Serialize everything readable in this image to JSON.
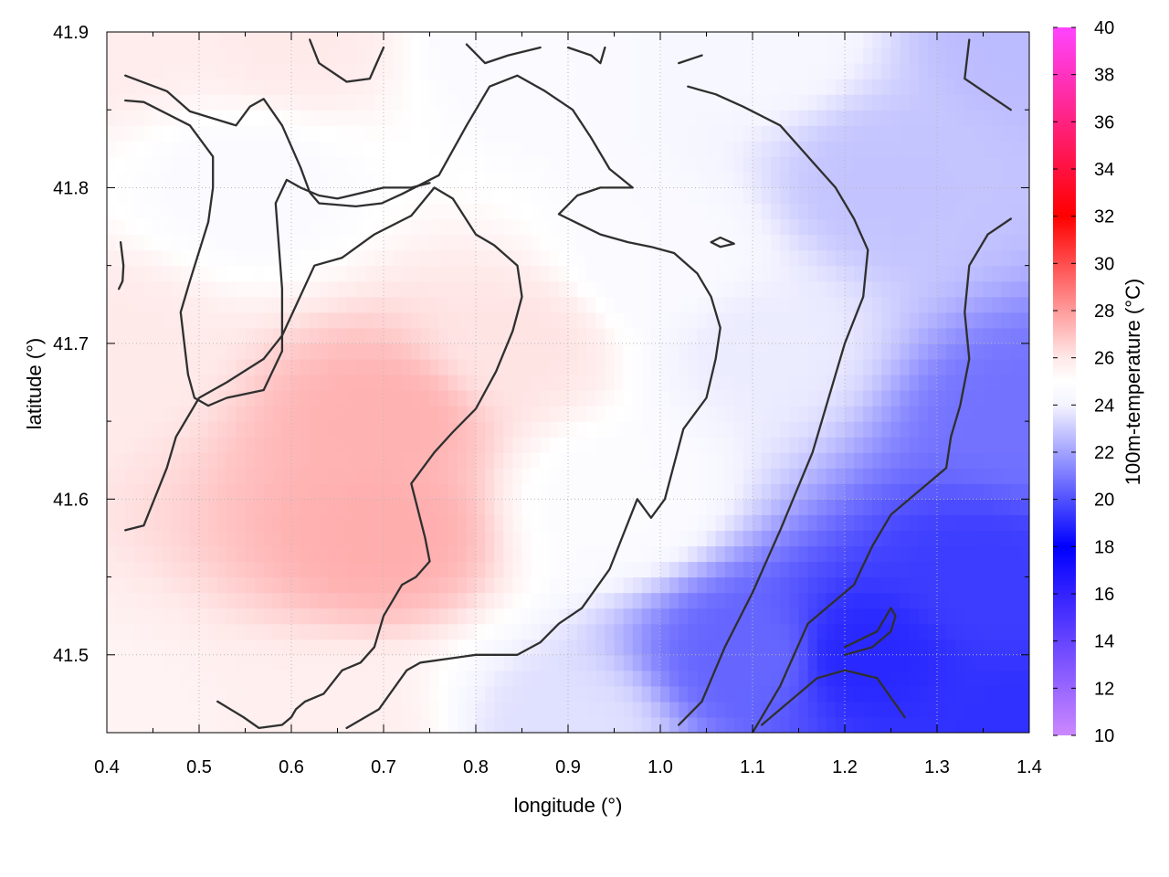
{
  "chart_data": {
    "type": "heatmap",
    "xlabel": "longitude (°)",
    "ylabel": "latitude (°)",
    "colorbar_label": "100m-temperature (°C)",
    "xlim": [
      0.4,
      1.4
    ],
    "ylim": [
      41.45,
      41.9
    ],
    "x_ticks": [
      0.4,
      0.5,
      0.6,
      0.7,
      0.8,
      0.9,
      1.0,
      1.1,
      1.2,
      1.3,
      1.4
    ],
    "x_tick_labels": [
      "0.4",
      "0.5",
      "0.6",
      "0.7",
      "0.8",
      "0.9",
      "1.0",
      "1.1",
      "1.2",
      "1.3",
      "1.4"
    ],
    "y_ticks": [
      41.5,
      41.6,
      41.7,
      41.8,
      41.9
    ],
    "y_tick_labels": [
      "41.5",
      "41.6",
      "41.7",
      "41.8",
      "41.9"
    ],
    "colorbar_range": [
      10,
      40
    ],
    "colorbar_ticks": [
      10,
      12,
      14,
      16,
      18,
      20,
      22,
      24,
      26,
      28,
      30,
      32,
      34,
      36,
      38,
      40
    ],
    "colorbar_tick_labels": [
      "10",
      "12",
      "14",
      "16",
      "18",
      "20",
      "22",
      "24",
      "26",
      "28",
      "30",
      "32",
      "34",
      "36",
      "38",
      "40"
    ],
    "colormap_stops": [
      {
        "value": 10,
        "color": "#cc88ff"
      },
      {
        "value": 18,
        "color": "#0000ff"
      },
      {
        "value": 24,
        "color": "#f4f4ff"
      },
      {
        "value": 25,
        "color": "#ffffff"
      },
      {
        "value": 26,
        "color": "#ffe8e8"
      },
      {
        "value": 32,
        "color": "#ff0000"
      },
      {
        "value": 40,
        "color": "#ff44ff"
      }
    ],
    "grid": true,
    "temperature_field_samples": [
      {
        "lon": 0.4,
        "lat": 41.9,
        "t": 25.8
      },
      {
        "lon": 0.6,
        "lat": 41.9,
        "t": 25.9
      },
      {
        "lon": 0.85,
        "lat": 41.9,
        "t": 24.5
      },
      {
        "lon": 1.1,
        "lat": 41.9,
        "t": 24.3
      },
      {
        "lon": 1.4,
        "lat": 41.9,
        "t": 22.6
      },
      {
        "lon": 0.4,
        "lat": 41.7,
        "t": 25.9
      },
      {
        "lon": 0.55,
        "lat": 41.8,
        "t": 24.6
      },
      {
        "lon": 0.7,
        "lat": 41.65,
        "t": 27.4
      },
      {
        "lon": 0.7,
        "lat": 41.58,
        "t": 27.5
      },
      {
        "lon": 0.85,
        "lat": 41.7,
        "t": 26.1
      },
      {
        "lon": 0.95,
        "lat": 41.6,
        "t": 24.7
      },
      {
        "lon": 1.0,
        "lat": 41.75,
        "t": 24.5
      },
      {
        "lon": 1.1,
        "lat": 41.7,
        "t": 23.8
      },
      {
        "lon": 1.25,
        "lat": 41.8,
        "t": 22.8
      },
      {
        "lon": 1.4,
        "lat": 41.65,
        "t": 20.8
      },
      {
        "lon": 0.4,
        "lat": 41.45,
        "t": 25.5
      },
      {
        "lon": 0.65,
        "lat": 41.45,
        "t": 25.7
      },
      {
        "lon": 0.9,
        "lat": 41.45,
        "t": 23.5
      },
      {
        "lon": 1.1,
        "lat": 41.5,
        "t": 20.5
      },
      {
        "lon": 1.22,
        "lat": 41.5,
        "t": 19.0
      },
      {
        "lon": 1.35,
        "lat": 41.55,
        "t": 19.5
      },
      {
        "lon": 1.4,
        "lat": 41.45,
        "t": 19.2
      }
    ],
    "contours": [
      {
        "points": [
          [
            0.42,
            41.872
          ],
          [
            0.465,
            41.862
          ],
          [
            0.49,
            41.849
          ],
          [
            0.54,
            41.84
          ],
          [
            0.555,
            41.852
          ],
          [
            0.57,
            41.857
          ],
          [
            0.59,
            41.84
          ],
          [
            0.61,
            41.813
          ],
          [
            0.62,
            41.797
          ],
          [
            0.63,
            41.79
          ],
          [
            0.67,
            41.788
          ],
          [
            0.698,
            41.79
          ],
          [
            0.72,
            41.796
          ],
          [
            0.76,
            41.808
          ],
          [
            0.79,
            41.84
          ],
          [
            0.815,
            41.865
          ],
          [
            0.845,
            41.872
          ],
          [
            0.875,
            41.862
          ],
          [
            0.905,
            41.85
          ],
          [
            0.925,
            41.832
          ],
          [
            0.945,
            41.812
          ],
          [
            0.97,
            41.8
          ],
          [
            0.935,
            41.8
          ],
          [
            0.91,
            41.795
          ],
          [
            0.89,
            41.783
          ],
          [
            0.935,
            41.77
          ],
          [
            0.965,
            41.765
          ],
          [
            0.99,
            41.762
          ],
          [
            1.015,
            41.758
          ],
          [
            1.04,
            41.745
          ],
          [
            1.055,
            41.73
          ],
          [
            1.065,
            41.71
          ],
          [
            1.06,
            41.69
          ],
          [
            1.05,
            41.665
          ],
          [
            1.025,
            41.645
          ],
          [
            1.005,
            41.6
          ],
          [
            0.99,
            41.588
          ],
          [
            0.975,
            41.6
          ],
          [
            0.945,
            41.555
          ],
          [
            0.915,
            41.53
          ],
          [
            0.89,
            41.52
          ],
          [
            0.87,
            41.508
          ],
          [
            0.845,
            41.5
          ],
          [
            0.8,
            41.5
          ],
          [
            0.74,
            41.495
          ],
          [
            0.725,
            41.49
          ],
          [
            0.695,
            41.465
          ],
          [
            0.66,
            41.453
          ]
        ]
      },
      {
        "points": [
          [
            0.42,
            41.856
          ],
          [
            0.44,
            41.855
          ],
          [
            0.49,
            41.84
          ],
          [
            0.515,
            41.82
          ],
          [
            0.515,
            41.8
          ],
          [
            0.51,
            41.778
          ],
          [
            0.49,
            41.74
          ],
          [
            0.48,
            41.72
          ],
          [
            0.485,
            41.695
          ],
          [
            0.488,
            41.68
          ],
          [
            0.495,
            41.665
          ],
          [
            0.51,
            41.66
          ],
          [
            0.53,
            41.665
          ],
          [
            0.57,
            41.67
          ],
          [
            0.59,
            41.695
          ],
          [
            0.59,
            41.735
          ],
          [
            0.583,
            41.79
          ],
          [
            0.595,
            41.805
          ],
          [
            0.61,
            41.8
          ],
          [
            0.63,
            41.795
          ],
          [
            0.65,
            41.793
          ],
          [
            0.7,
            41.8
          ],
          [
            0.73,
            41.8
          ],
          [
            0.75,
            41.803
          ]
        ]
      },
      {
        "points": [
          [
            0.42,
            41.58
          ],
          [
            0.44,
            41.583
          ],
          [
            0.465,
            41.62
          ],
          [
            0.475,
            41.64
          ],
          [
            0.5,
            41.665
          ],
          [
            0.53,
            41.675
          ],
          [
            0.57,
            41.69
          ],
          [
            0.59,
            41.705
          ],
          [
            0.625,
            41.75
          ],
          [
            0.655,
            41.755
          ],
          [
            0.69,
            41.77
          ],
          [
            0.73,
            41.782
          ],
          [
            0.755,
            41.8
          ],
          [
            0.775,
            41.793
          ],
          [
            0.8,
            41.77
          ],
          [
            0.82,
            41.763
          ],
          [
            0.845,
            41.75
          ],
          [
            0.85,
            41.73
          ],
          [
            0.84,
            41.708
          ],
          [
            0.822,
            41.682
          ],
          [
            0.8,
            41.658
          ],
          [
            0.775,
            41.643
          ],
          [
            0.755,
            41.63
          ],
          [
            0.73,
            41.61
          ],
          [
            0.745,
            41.575
          ],
          [
            0.75,
            41.56
          ],
          [
            0.735,
            41.55
          ],
          [
            0.72,
            41.545
          ],
          [
            0.7,
            41.525
          ],
          [
            0.69,
            41.505
          ],
          [
            0.675,
            41.495
          ],
          [
            0.655,
            41.49
          ],
          [
            0.635,
            41.475
          ],
          [
            0.615,
            41.47
          ],
          [
            0.605,
            41.465
          ],
          [
            0.6,
            41.46
          ],
          [
            0.59,
            41.455
          ],
          [
            0.565,
            41.453
          ],
          [
            0.548,
            41.46
          ],
          [
            0.52,
            41.47
          ]
        ]
      },
      {
        "points": [
          [
            0.415,
            41.765
          ],
          [
            0.418,
            41.75
          ],
          [
            0.417,
            41.74
          ],
          [
            0.413,
            41.735
          ]
        ]
      },
      {
        "points": [
          [
            0.62,
            41.895
          ],
          [
            0.63,
            41.88
          ],
          [
            0.66,
            41.868
          ],
          [
            0.685,
            41.87
          ],
          [
            0.7,
            41.89
          ]
        ]
      },
      {
        "points": [
          [
            0.79,
            41.892
          ],
          [
            0.81,
            41.88
          ],
          [
            0.835,
            41.885
          ],
          [
            0.87,
            41.89
          ]
        ]
      },
      {
        "points": [
          [
            0.9,
            41.89
          ],
          [
            0.925,
            41.885
          ],
          [
            0.935,
            41.88
          ],
          [
            0.94,
            41.89
          ]
        ]
      },
      {
        "points": [
          [
            1.02,
            41.88
          ],
          [
            1.045,
            41.885
          ]
        ]
      },
      {
        "points": [
          [
            1.335,
            41.895
          ],
          [
            1.33,
            41.87
          ],
          [
            1.355,
            41.86
          ],
          [
            1.38,
            41.85
          ]
        ]
      },
      {
        "points": [
          [
            1.055,
            41.765
          ],
          [
            1.065,
            41.768
          ],
          [
            1.08,
            41.764
          ],
          [
            1.065,
            41.762
          ],
          [
            1.055,
            41.765
          ]
        ]
      },
      {
        "points": [
          [
            1.02,
            41.455
          ],
          [
            1.045,
            41.47
          ],
          [
            1.07,
            41.505
          ],
          [
            1.1,
            41.54
          ],
          [
            1.13,
            41.58
          ],
          [
            1.165,
            41.63
          ],
          [
            1.18,
            41.66
          ],
          [
            1.2,
            41.7
          ],
          [
            1.22,
            41.73
          ],
          [
            1.225,
            41.76
          ],
          [
            1.21,
            41.78
          ],
          [
            1.19,
            41.8
          ],
          [
            1.16,
            41.82
          ],
          [
            1.13,
            41.84
          ],
          [
            1.09,
            41.852
          ],
          [
            1.06,
            41.86
          ],
          [
            1.03,
            41.865
          ]
        ]
      },
      {
        "points": [
          [
            1.11,
            41.455
          ],
          [
            1.14,
            41.47
          ],
          [
            1.17,
            41.485
          ],
          [
            1.2,
            41.49
          ],
          [
            1.235,
            41.485
          ],
          [
            1.265,
            41.46
          ]
        ]
      },
      {
        "points": [
          [
            1.2,
            41.5
          ],
          [
            1.23,
            41.505
          ],
          [
            1.25,
            41.515
          ],
          [
            1.255,
            41.525
          ],
          [
            1.25,
            41.53
          ],
          [
            1.235,
            41.515
          ],
          [
            1.2,
            41.505
          ]
        ]
      },
      {
        "points": [
          [
            1.38,
            41.78
          ],
          [
            1.355,
            41.77
          ],
          [
            1.335,
            41.75
          ],
          [
            1.33,
            41.72
          ],
          [
            1.335,
            41.69
          ],
          [
            1.325,
            41.66
          ],
          [
            1.315,
            41.64
          ],
          [
            1.31,
            41.62
          ],
          [
            1.28,
            41.605
          ],
          [
            1.25,
            41.59
          ],
          [
            1.23,
            41.57
          ],
          [
            1.21,
            41.545
          ],
          [
            1.18,
            41.53
          ],
          [
            1.16,
            41.52
          ],
          [
            1.13,
            41.48
          ],
          [
            1.1,
            41.45
          ]
        ]
      }
    ]
  }
}
